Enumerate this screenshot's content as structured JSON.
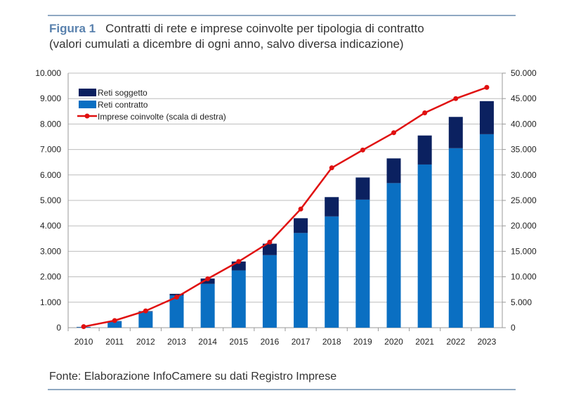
{
  "header": {
    "figure_label": "Figura 1",
    "title": "Contratti di rete e imprese coinvolte per tipologia di contratto",
    "subtitle": "(valori cumulati a dicembre di ogni anno, salvo diversa indicazione)"
  },
  "footer": {
    "source": "Fonte: Elaborazione InfoCamere su dati Registro Imprese"
  },
  "chart_data": {
    "type": "bar",
    "stacked": true,
    "categories": [
      "2010",
      "2011",
      "2012",
      "2013",
      "2014",
      "2015",
      "2016",
      "2017",
      "2018",
      "2019",
      "2020",
      "2021",
      "2022",
      "2023"
    ],
    "series": [
      {
        "name": "Reti contratto",
        "type": "bar",
        "axis": "left",
        "color": "#0a6fc2",
        "values": [
          20,
          250,
          630,
          1270,
          1720,
          2250,
          2850,
          3720,
          4370,
          5030,
          5680,
          6410,
          7050,
          7600
        ]
      },
      {
        "name": "Reti soggetto",
        "type": "bar",
        "axis": "left",
        "color": "#0b2160",
        "values": [
          10,
          10,
          20,
          60,
          210,
          350,
          450,
          580,
          760,
          870,
          970,
          1140,
          1230,
          1300
        ]
      },
      {
        "name": "Imprese coinvolte (scala di destra)",
        "type": "line",
        "axis": "right",
        "color": "#e01010",
        "values": [
          200,
          1400,
          3300,
          6000,
          9600,
          13000,
          16800,
          23300,
          31400,
          34900,
          38300,
          42200,
          45000,
          47200
        ]
      }
    ],
    "ylim": [
      0,
      10000
    ],
    "y2lim": [
      0,
      50000
    ],
    "yticks": [
      "0",
      "1.000",
      "2.000",
      "3.000",
      "4.000",
      "5.000",
      "6.000",
      "7.000",
      "8.000",
      "9.000",
      "10.000"
    ],
    "y2ticks": [
      "0",
      "5.000",
      "10.000",
      "15.000",
      "20.000",
      "25.000",
      "30.000",
      "35.000",
      "40.000",
      "45.000",
      "50.000"
    ],
    "legend_order": [
      "Reti soggetto",
      "Reti contratto",
      "Imprese coinvolte (scala di destra)"
    ],
    "legend_position": "top-left",
    "grid": true
  }
}
